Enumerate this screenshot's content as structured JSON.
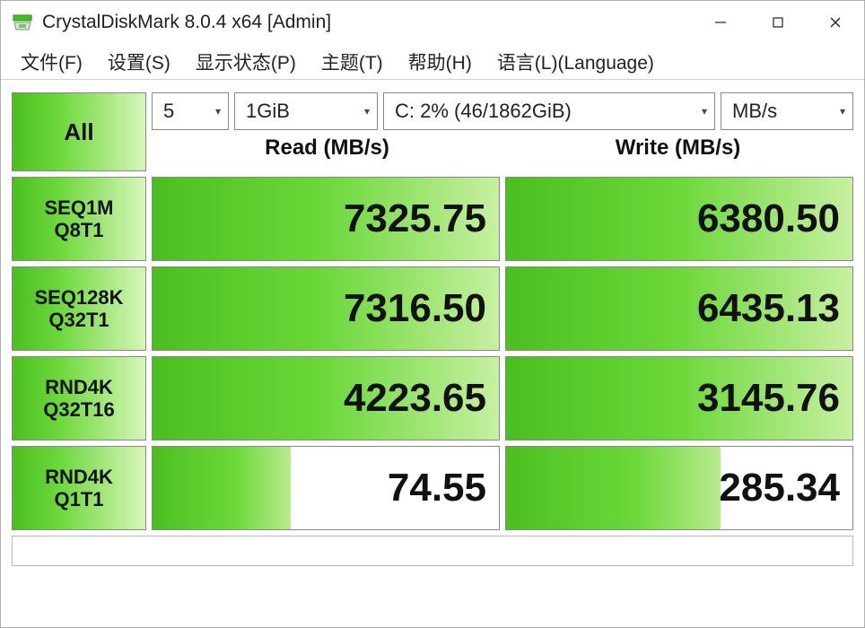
{
  "title": "CrystalDiskMark 8.0.4 x64 [Admin]",
  "menu": {
    "file": "文件(F)",
    "settings": "设置(S)",
    "display": "显示状态(P)",
    "theme": "主题(T)",
    "help": "帮助(H)",
    "language": "语言(L)(Language)"
  },
  "controls": {
    "all_label": "All",
    "runs": "5",
    "size": "1GiB",
    "drive": "C: 2% (46/1862GiB)",
    "unit": "MB/s",
    "read_header": "Read (MB/s)",
    "write_header": "Write (MB/s)"
  },
  "tests": [
    {
      "name1": "SEQ1M",
      "name2": "Q8T1",
      "read": "7325.75",
      "write": "6380.50",
      "read_pct": 100,
      "write_pct": 100
    },
    {
      "name1": "SEQ128K",
      "name2": "Q32T1",
      "read": "7316.50",
      "write": "6435.13",
      "read_pct": 100,
      "write_pct": 100
    },
    {
      "name1": "RND4K",
      "name2": "Q32T16",
      "read": "4223.65",
      "write": "3145.76",
      "read_pct": 100,
      "write_pct": 100
    },
    {
      "name1": "RND4K",
      "name2": "Q1T1",
      "read": "74.55",
      "write": "285.34",
      "read_pct": 40,
      "write_pct": 62
    }
  ],
  "colors": {
    "brand_green_dark": "#4bbf1f",
    "brand_green_light": "#c7f0a0",
    "border": "#888888",
    "text": "#111111"
  }
}
